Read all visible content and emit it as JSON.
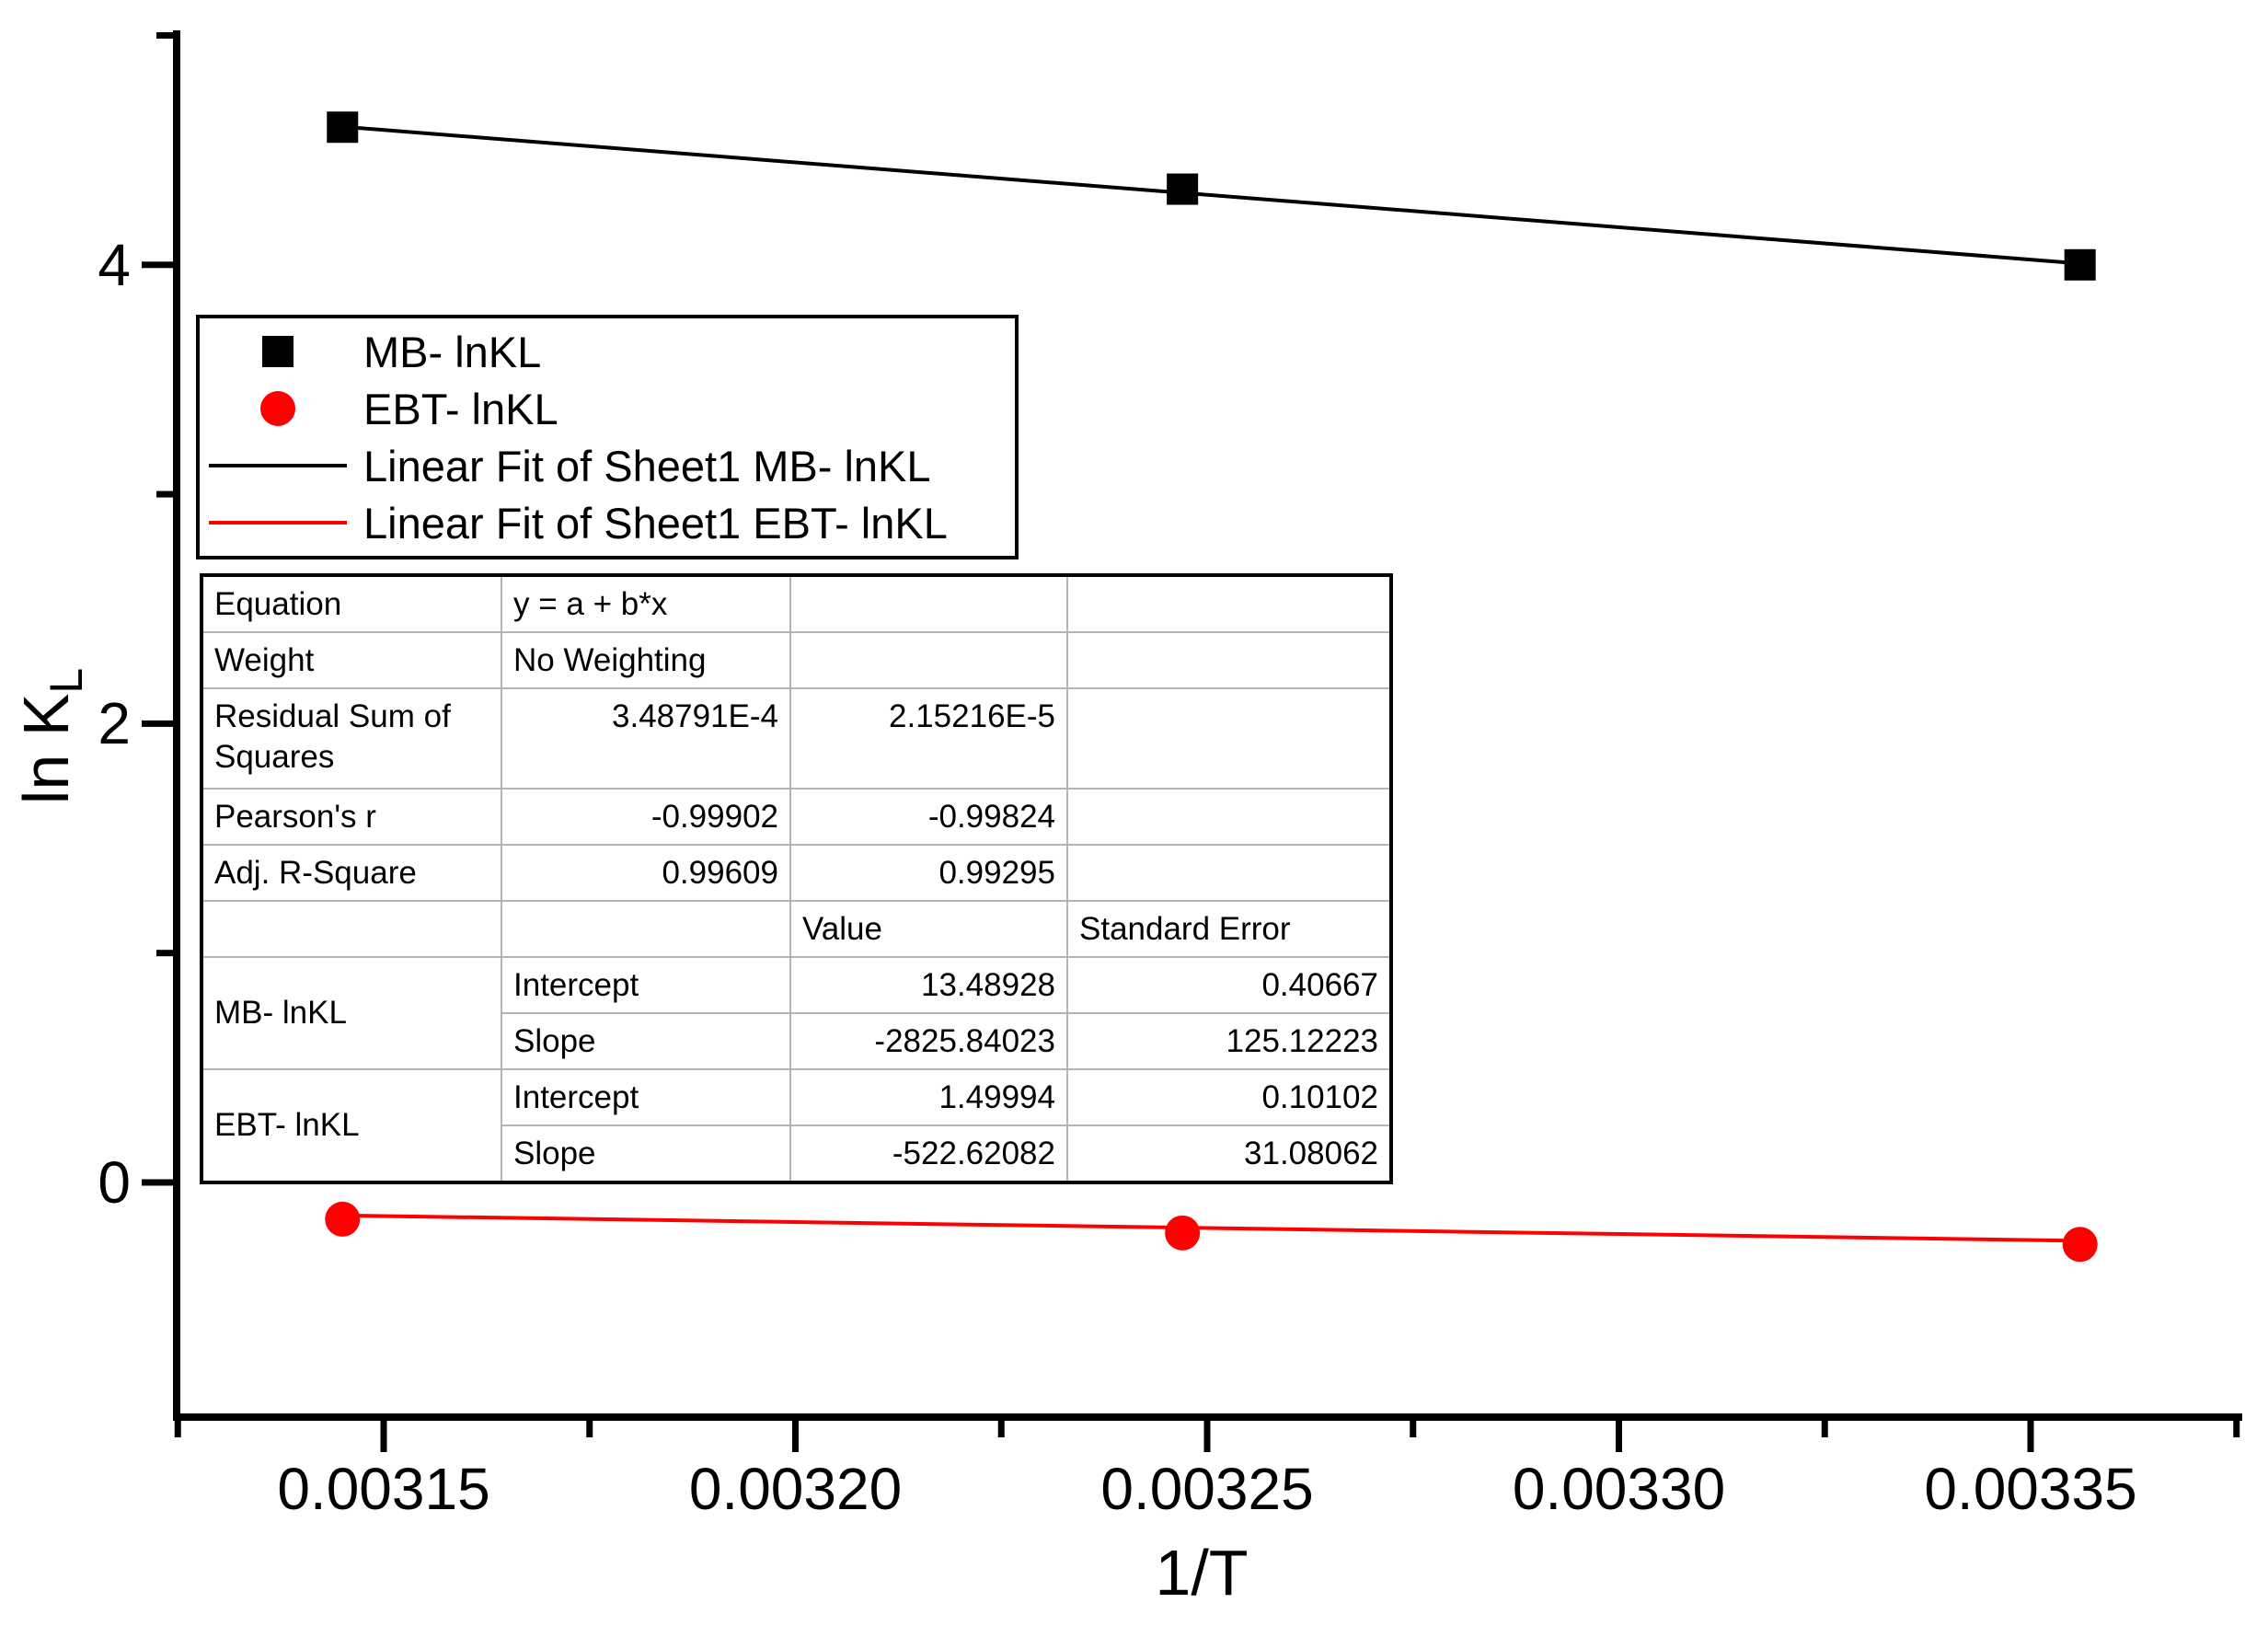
{
  "chart_data": {
    "type": "scatter",
    "title": "",
    "xlabel": "1/T",
    "ylabel": "ln K",
    "ylabel_sub": "L",
    "xlim": [
      0.003125,
      0.003375
    ],
    "ylim": [
      -1.02,
      5.0
    ],
    "x_ticks": [
      0.00315,
      0.0032,
      0.00325,
      0.0033,
      0.00335
    ],
    "x_tick_labels": [
      "0.00315",
      "0.00320",
      "0.00325",
      "0.00330",
      "0.00335"
    ],
    "x_minor_ticks": [
      0.003125,
      0.003175,
      0.003225,
      0.003275,
      0.003325,
      0.003375
    ],
    "y_ticks": [
      0,
      2,
      4
    ],
    "y_tick_labels": [
      "0",
      "2",
      "4"
    ],
    "y_minor_ticks": [
      1,
      3,
      5
    ],
    "grid": false,
    "legend_position": "upper-left",
    "series": [
      {
        "name": "MB- lnKL",
        "marker": "square",
        "color": "#000000",
        "x": [
          0.003145,
          0.003247,
          0.003356
        ],
        "y": [
          4.6,
          4.33,
          4.0
        ],
        "fit": {
          "intercept": 13.48928,
          "slope": -2825.84023
        }
      },
      {
        "name": "EBT- lnKL",
        "marker": "circle",
        "color": "#ff0000",
        "x": [
          0.003145,
          0.003247,
          0.003356
        ],
        "y": [
          -0.16,
          -0.22,
          -0.27
        ],
        "fit": {
          "intercept": 1.49994,
          "slope": -522.62082
        }
      }
    ]
  },
  "legend": {
    "items": [
      {
        "label": "MB- lnKL",
        "marker": "square",
        "color": "#000000"
      },
      {
        "label": "EBT- lnKL",
        "marker": "circle",
        "color": "#ff0000"
      },
      {
        "label": "Linear Fit of Sheet1 MB- lnKL",
        "marker": "line",
        "color": "#000000"
      },
      {
        "label": "Linear Fit of Sheet1 EBT- lnKL",
        "marker": "line",
        "color": "#ff0000"
      }
    ]
  },
  "stats_table": {
    "equation_label": "Equation",
    "equation_value": "y = a + b*x",
    "weight_label": "Weight",
    "weight_value": "No Weighting",
    "rss_label": "Residual Sum of Squares",
    "rss_mb": "3.48791E-4",
    "rss_ebt": "2.15216E-5",
    "pearson_label": "Pearson's r",
    "pearson_mb": "-0.99902",
    "pearson_ebt": "-0.99824",
    "adj_r_label": "Adj. R-Square",
    "adj_r_mb": "0.99609",
    "adj_r_ebt": "0.99295",
    "value_header": "Value",
    "stderr_header": "Standard Error",
    "mb_series_label": "MB- lnKL",
    "ebt_series_label": "EBT- lnKL",
    "intercept_label": "Intercept",
    "slope_label": "Slope",
    "mb_intercept_value": "13.48928",
    "mb_intercept_stderr": "0.40667",
    "mb_slope_value": "-2825.84023",
    "mb_slope_stderr": "125.12223",
    "ebt_intercept_value": "1.49994",
    "ebt_intercept_stderr": "0.10102",
    "ebt_slope_value": "-522.62082",
    "ebt_slope_stderr": "31.08062"
  }
}
